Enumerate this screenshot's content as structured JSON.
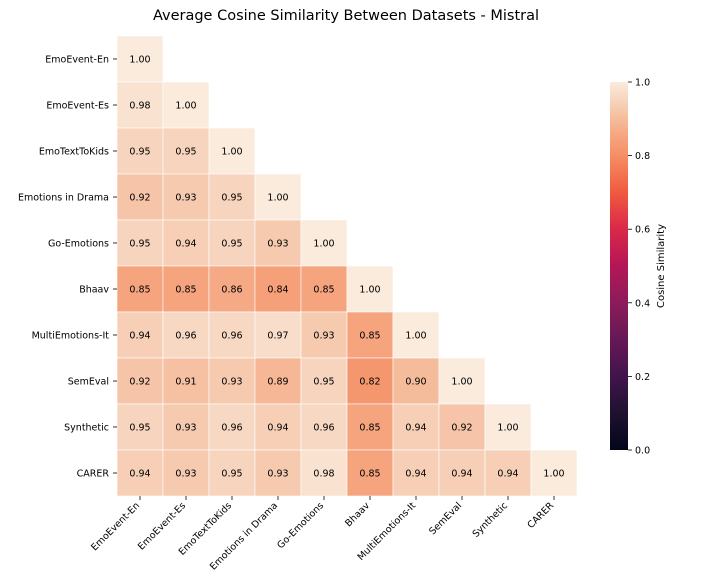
{
  "chart_data": {
    "type": "heatmap",
    "title": "Average Cosine Similarity Between Datasets - Mistral",
    "labels": [
      "EmoEvent-En",
      "EmoEvent-Es",
      "EmoTextToKids",
      "Emotions in Drama",
      "Go-Emotions",
      "Bhaav",
      "MultiEmotions-It",
      "SemEval",
      "Synthetic",
      "CARER"
    ],
    "matrix": [
      [
        1.0
      ],
      [
        0.98,
        1.0
      ],
      [
        0.95,
        0.95,
        1.0
      ],
      [
        0.92,
        0.93,
        0.95,
        1.0
      ],
      [
        0.95,
        0.94,
        0.95,
        0.93,
        1.0
      ],
      [
        0.85,
        0.85,
        0.86,
        0.84,
        0.85,
        1.0
      ],
      [
        0.94,
        0.96,
        0.96,
        0.97,
        0.93,
        0.85,
        1.0
      ],
      [
        0.92,
        0.91,
        0.93,
        0.89,
        0.95,
        0.82,
        0.9,
        1.0
      ],
      [
        0.95,
        0.93,
        0.96,
        0.94,
        0.96,
        0.85,
        0.94,
        0.92,
        1.0
      ],
      [
        0.94,
        0.93,
        0.95,
        0.93,
        0.98,
        0.85,
        0.94,
        0.94,
        0.94,
        1.0
      ]
    ],
    "mask": "upper-triangle",
    "value_format": "0.00",
    "colorbar": {
      "label": "Cosine Similarity",
      "range": [
        0.0,
        1.0
      ],
      "ticks": [
        "0.0",
        "0.2",
        "0.4",
        "0.6",
        "0.8",
        "1.0"
      ],
      "colormap": "rocket"
    },
    "legend_position": "right"
  }
}
